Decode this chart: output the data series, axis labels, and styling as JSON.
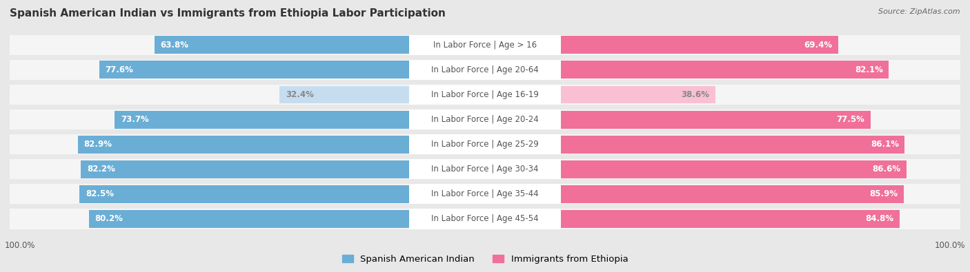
{
  "title": "Spanish American Indian vs Immigrants from Ethiopia Labor Participation",
  "source": "Source: ZipAtlas.com",
  "categories": [
    "In Labor Force | Age > 16",
    "In Labor Force | Age 20-64",
    "In Labor Force | Age 16-19",
    "In Labor Force | Age 20-24",
    "In Labor Force | Age 25-29",
    "In Labor Force | Age 30-34",
    "In Labor Force | Age 35-44",
    "In Labor Force | Age 45-54"
  ],
  "left_values": [
    63.8,
    77.6,
    32.4,
    73.7,
    82.9,
    82.2,
    82.5,
    80.2
  ],
  "right_values": [
    69.4,
    82.1,
    38.6,
    77.5,
    86.1,
    86.6,
    85.9,
    84.8
  ],
  "left_color": "#6aaed6",
  "right_color": "#f0709a",
  "left_color_light": "#c6ddf0",
  "right_color_light": "#f9c0d4",
  "left_label": "Spanish American Indian",
  "right_label": "Immigrants from Ethiopia",
  "max_val": 100.0,
  "bg_color": "#e8e8e8",
  "row_bg_color": "#f5f5f5",
  "title_fontsize": 11,
  "label_fontsize": 8.5,
  "value_fontsize": 8.5,
  "legend_fontsize": 9.5,
  "source_fontsize": 8
}
